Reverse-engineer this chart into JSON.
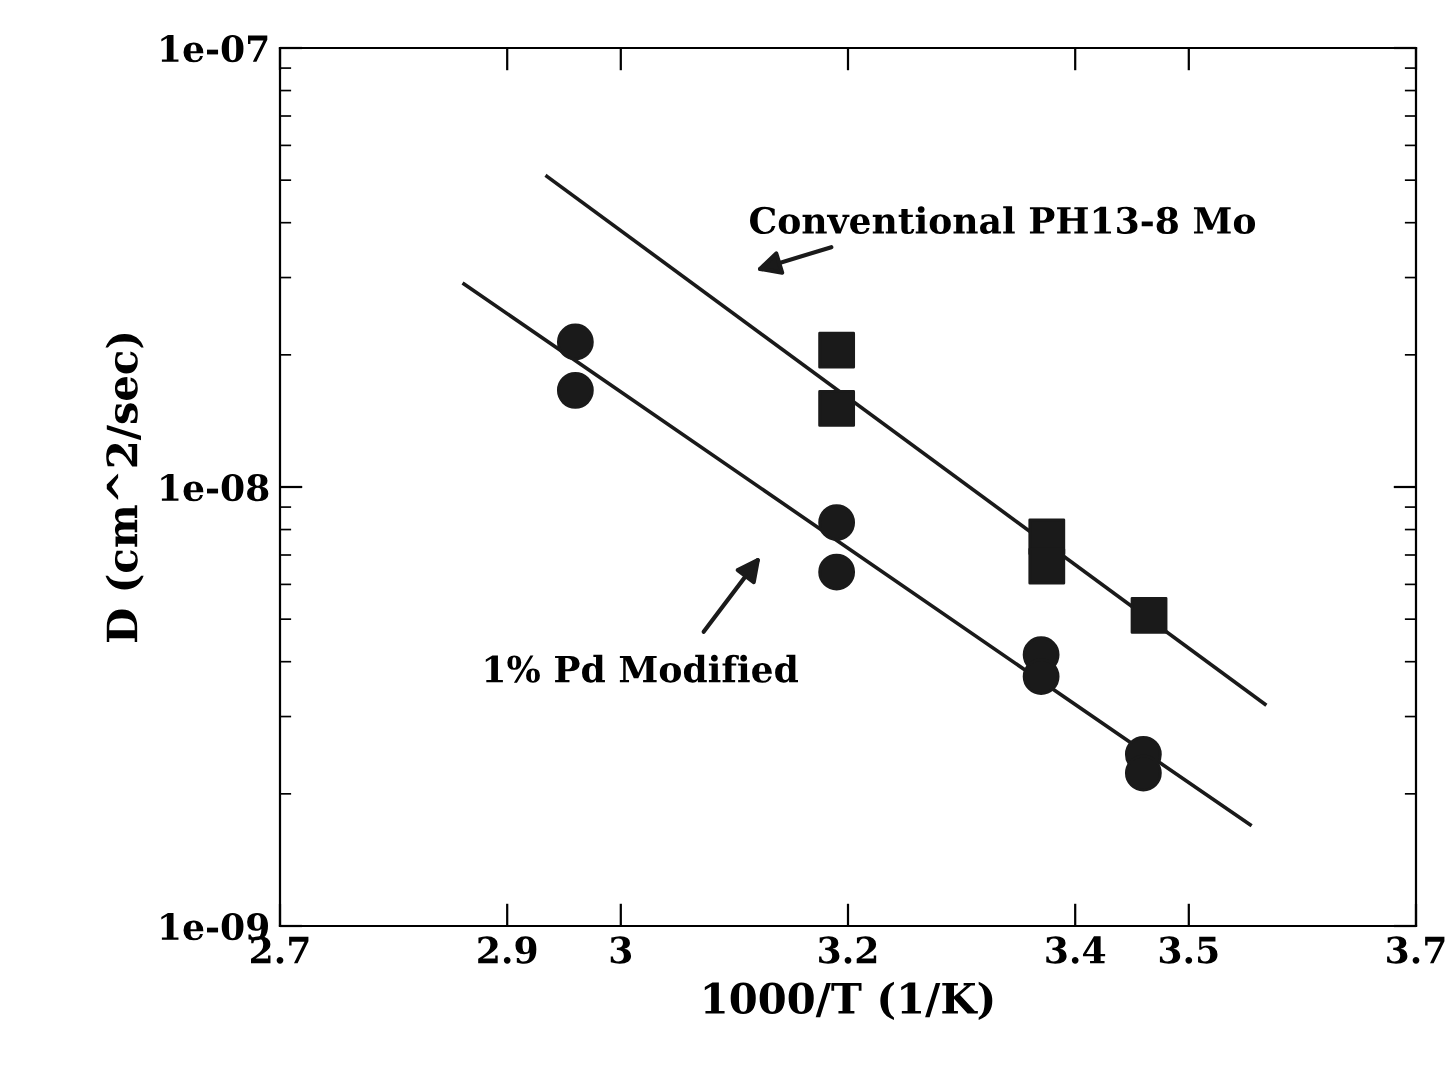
{
  "chart_data": {
    "type": "scatter",
    "xlabel": "1000/T (1/K)",
    "ylabel": "D (cm^2/sec)",
    "log": "y",
    "grid": false,
    "legend": false,
    "xlim": [
      2.7,
      3.7
    ],
    "xticks": [
      2.7,
      2.9,
      3,
      3.2,
      3.4,
      3.5,
      3.7
    ],
    "ylim": [
      1e-09,
      1e-07
    ],
    "yticks": [
      {
        "value": 1e-09,
        "label": "1e-09"
      },
      {
        "value": 1e-08,
        "label": "1e-08"
      },
      {
        "value": 1e-07,
        "label": "1e-07"
      }
    ],
    "series": [
      {
        "marker": "circle",
        "color": "#1a1a1a",
        "x": [
          2.96,
          2.96,
          3.19,
          3.19,
          3.37,
          3.37,
          3.46,
          3.46
        ],
        "values": [
          2.14e-08,
          1.66e-08,
          8.3e-09,
          6.4e-09,
          4.15e-09,
          3.7e-09,
          2.46e-09,
          2.23e-09
        ]
      },
      {
        "marker": "square",
        "color": "#1a1a1a",
        "x": [
          3.19,
          3.19,
          3.375,
          3.375,
          3.465
        ],
        "values": [
          2.05e-08,
          1.51e-08,
          7.7e-09,
          6.6e-09,
          5.1e-09
        ]
      },
      {
        "type": "line",
        "marker": "none",
        "line_style": "solid",
        "color": "#1a1a1a",
        "x": [
          2.935,
          3.567
        ],
        "values": [
          5.1e-08,
          3.2e-09
        ]
      },
      {
        "type": "line",
        "marker": "none",
        "line_style": "solid",
        "color": "#1a1a1a",
        "x": [
          2.862,
          3.554
        ],
        "values": [
          2.9e-08,
          1.7e-09
        ]
      }
    ],
    "annotations": [
      "Conventional PH13-8 Mo",
      "1% Pd Modified"
    ]
  }
}
